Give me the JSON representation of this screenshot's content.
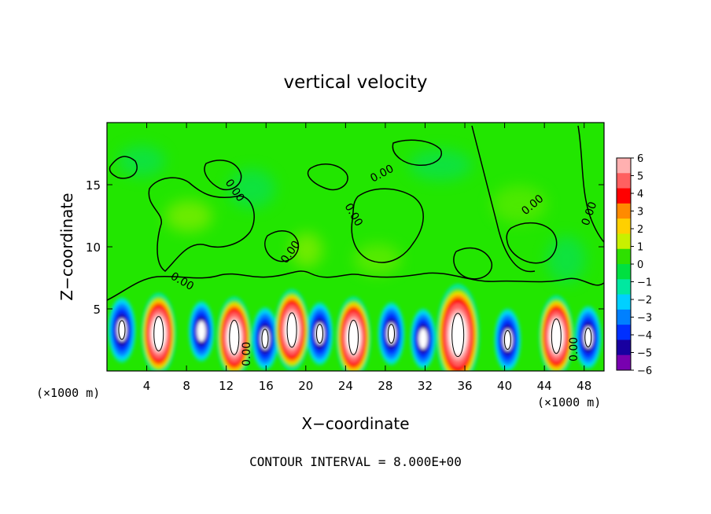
{
  "chart_data": {
    "type": "heatmap",
    "title": "vertical velocity",
    "xlabel": "X−coordinate",
    "ylabel": "Z−coordinate",
    "x_unit_left": "(×1000 m)",
    "x_unit_right": "(×1000 m)",
    "footer": "CONTOUR INTERVAL = 8.000E+00",
    "contour_label": "0.00",
    "xlim": [
      0,
      50
    ],
    "ylim": [
      0,
      20
    ],
    "x_ticks": [
      4,
      8,
      12,
      16,
      20,
      24,
      28,
      32,
      36,
      40,
      44,
      48
    ],
    "x_tick_labels": [
      "4",
      "8",
      "12",
      "16",
      "20",
      "24",
      "28",
      "32",
      "36",
      "40",
      "44",
      "48"
    ],
    "y_ticks": [
      5,
      10,
      15
    ],
    "y_tick_labels": [
      "5",
      "10",
      "15"
    ],
    "colorbar": {
      "min": -6,
      "max": 6,
      "tick_labels": [
        "6",
        "5",
        "4",
        "3",
        "2",
        "1",
        "0",
        "−1",
        "−2",
        "−3",
        "−4",
        "−5",
        "−6"
      ],
      "colors": [
        "#ffb0b0",
        "#ff6060",
        "#ff0000",
        "#ff8a00",
        "#ffd000",
        "#c8f000",
        "#2ee000",
        "#00e040",
        "#00e8a0",
        "#00d0ff",
        "#0080ff",
        "#0030ff",
        "#1800a0",
        "#7800b0"
      ]
    },
    "updrafts": [
      {
        "x": 5.2,
        "z": 3.0,
        "max": 8
      },
      {
        "x": 12.8,
        "z": 2.7,
        "max": 8
      },
      {
        "x": 18.6,
        "z": 3.3,
        "max": 8
      },
      {
        "x": 24.8,
        "z": 2.7,
        "max": 8
      },
      {
        "x": 35.3,
        "z": 2.9,
        "max": 10
      },
      {
        "x": 45.2,
        "z": 2.8,
        "max": 8
      }
    ],
    "downdrafts": [
      {
        "x": 1.5,
        "z": 3.3,
        "min": -8
      },
      {
        "x": 9.5,
        "z": 3.2,
        "min": -6
      },
      {
        "x": 15.9,
        "z": 2.6,
        "min": -7
      },
      {
        "x": 21.4,
        "z": 3.0,
        "min": -7
      },
      {
        "x": 28.6,
        "z": 3.0,
        "min": -7
      },
      {
        "x": 31.8,
        "z": 2.6,
        "min": -6
      },
      {
        "x": 40.3,
        "z": 2.5,
        "min": -7
      },
      {
        "x": 48.4,
        "z": 2.7,
        "min": -7
      }
    ]
  }
}
